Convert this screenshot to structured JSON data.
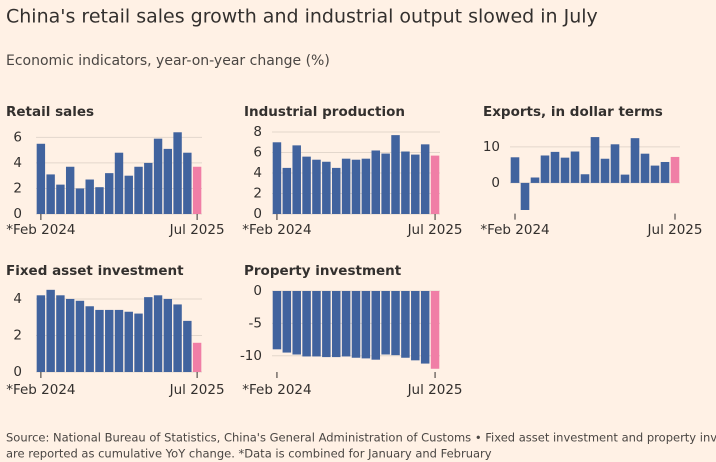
{
  "title": "China's retail sales growth and industrial output slowed in July",
  "subtitle": "Economic indicators, year-on-year change (%)",
  "source": [
    "Source: National Bureau of Statistics, China's General Administration of Customs • Fixed asset investment and property investment",
    "are reported as cumulative YoY change. *Data is combined for January and February"
  ],
  "chart_data": [
    {
      "type": "bar",
      "title": "Retail sales",
      "categories": [
        "*Feb 2024",
        null,
        null,
        null,
        null,
        null,
        null,
        null,
        null,
        null,
        null,
        null,
        null,
        null,
        null,
        null,
        "Jul 2025"
      ],
      "values": [
        5.5,
        3.1,
        2.3,
        3.7,
        2.0,
        2.7,
        2.1,
        3.2,
        4.8,
        3.0,
        3.7,
        4.0,
        5.9,
        5.1,
        6.4,
        4.8,
        3.7
      ],
      "colors": [
        "#41639e",
        "#41639e",
        "#41639e",
        "#41639e",
        "#41639e",
        "#41639e",
        "#41639e",
        "#41639e",
        "#41639e",
        "#41639e",
        "#41639e",
        "#41639e",
        "#41639e",
        "#41639e",
        "#41639e",
        "#41639e",
        "#f07ea6"
      ],
      "ylim": [
        0,
        6.5
      ],
      "yticks": [
        0,
        2,
        4,
        6
      ],
      "grid": true
    },
    {
      "type": "bar",
      "title": "Industrial production",
      "categories": [
        "*Feb 2024",
        null,
        null,
        null,
        null,
        null,
        null,
        null,
        null,
        null,
        null,
        null,
        null,
        null,
        null,
        null,
        "Jul 2025"
      ],
      "values": [
        7.0,
        4.5,
        6.7,
        5.6,
        5.3,
        5.1,
        4.5,
        5.4,
        5.3,
        5.4,
        6.2,
        5.9,
        7.7,
        6.1,
        5.8,
        6.8,
        5.7
      ],
      "colors": [
        "#41639e",
        "#41639e",
        "#41639e",
        "#41639e",
        "#41639e",
        "#41639e",
        "#41639e",
        "#41639e",
        "#41639e",
        "#41639e",
        "#41639e",
        "#41639e",
        "#41639e",
        "#41639e",
        "#41639e",
        "#41639e",
        "#f07ea6"
      ],
      "ylim": [
        0,
        8.2
      ],
      "yticks": [
        0,
        2,
        4,
        6,
        8
      ],
      "grid": true
    },
    {
      "type": "bar",
      "title": "Exports, in dollar terms",
      "categories": [
        "*Feb 2024",
        null,
        null,
        null,
        null,
        null,
        null,
        null,
        null,
        null,
        null,
        null,
        null,
        null,
        null,
        null,
        "Jul 2025"
      ],
      "values": [
        7.1,
        -7.5,
        1.5,
        7.6,
        8.6,
        7.0,
        8.7,
        2.4,
        12.7,
        6.7,
        10.7,
        2.3,
        12.4,
        8.1,
        4.8,
        5.8,
        7.2
      ],
      "colors": [
        "#41639e",
        "#41639e",
        "#41639e",
        "#41639e",
        "#41639e",
        "#41639e",
        "#41639e",
        "#41639e",
        "#41639e",
        "#41639e",
        "#41639e",
        "#41639e",
        "#41639e",
        "#41639e",
        "#41639e",
        "#41639e",
        "#f07ea6"
      ],
      "ylim": [
        -8.5,
        13
      ],
      "yticks": [
        0,
        10
      ],
      "grid": true
    },
    {
      "type": "bar",
      "title": "Fixed asset investment",
      "categories": [
        "*Feb 2024",
        null,
        null,
        null,
        null,
        null,
        null,
        null,
        null,
        null,
        null,
        null,
        null,
        null,
        null,
        null,
        "Jul 2025"
      ],
      "values": [
        4.2,
        4.5,
        4.2,
        4.0,
        3.9,
        3.6,
        3.4,
        3.4,
        3.4,
        3.3,
        3.2,
        4.1,
        4.2,
        4.0,
        3.7,
        2.8,
        1.6
      ],
      "colors": [
        "#41639e",
        "#41639e",
        "#41639e",
        "#41639e",
        "#41639e",
        "#41639e",
        "#41639e",
        "#41639e",
        "#41639e",
        "#41639e",
        "#41639e",
        "#41639e",
        "#41639e",
        "#41639e",
        "#41639e",
        "#41639e",
        "#f07ea6"
      ],
      "ylim": [
        0,
        4.6
      ],
      "yticks": [
        0,
        2,
        4
      ],
      "grid": true
    },
    {
      "type": "bar",
      "title": "Property investment",
      "categories": [
        "*Feb 2024",
        null,
        null,
        null,
        null,
        null,
        null,
        null,
        null,
        null,
        null,
        null,
        null,
        null,
        null,
        null,
        "Jul 2025"
      ],
      "values": [
        -9.0,
        -9.5,
        -9.8,
        -10.1,
        -10.1,
        -10.2,
        -10.2,
        -10.1,
        -10.3,
        -10.4,
        -10.6,
        -9.8,
        -9.9,
        -10.3,
        -10.7,
        -11.2,
        -12.0
      ],
      "colors": [
        "#41639e",
        "#41639e",
        "#41639e",
        "#41639e",
        "#41639e",
        "#41639e",
        "#41639e",
        "#41639e",
        "#41639e",
        "#41639e",
        "#41639e",
        "#41639e",
        "#41639e",
        "#41639e",
        "#41639e",
        "#41639e",
        "#f07ea6"
      ],
      "ylim": [
        -12.5,
        0
      ],
      "yticks": [
        -10,
        -5,
        0
      ],
      "grid": true
    }
  ]
}
